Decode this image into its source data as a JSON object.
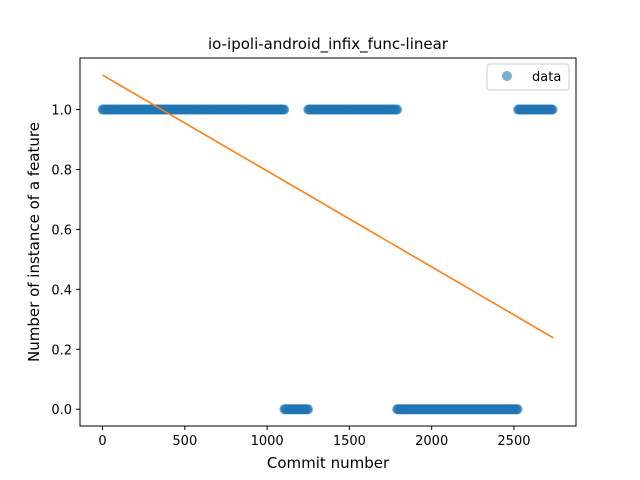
{
  "chart_data": {
    "type": "scatter",
    "title": "io-ipoli-android_infix_func-linear",
    "xlabel": "Commit number",
    "ylabel": "Number of instance of a feature",
    "xlim": [
      -137,
      2877
    ],
    "ylim": [
      -0.056,
      1.172
    ],
    "xticks": [
      0,
      500,
      1000,
      1500,
      2000,
      2500
    ],
    "xtick_labels": [
      "0",
      "500",
      "1000",
      "1500",
      "2000",
      "2500"
    ],
    "yticks": [
      0.0,
      0.2,
      0.4,
      0.6,
      0.8,
      1.0
    ],
    "ytick_labels": [
      "0.0",
      "0.2",
      "0.4",
      "0.6",
      "0.8",
      "1.0"
    ],
    "grid": false,
    "legend": {
      "placement": "top-right",
      "entries": [
        {
          "label": "data",
          "color": "#1f77b4",
          "marker": "circle"
        }
      ]
    },
    "series": [
      {
        "name": "data",
        "kind": "scatter",
        "color": "#1f77b4",
        "segments": [
          {
            "x_start": 0,
            "x_end": 1105,
            "y": 1
          },
          {
            "x_start": 1105,
            "x_end": 1250,
            "y": 0
          },
          {
            "x_start": 1250,
            "x_end": 1790,
            "y": 1
          },
          {
            "x_start": 1790,
            "x_end": 2525,
            "y": 0
          },
          {
            "x_start": 2525,
            "x_end": 2740,
            "y": 1
          }
        ]
      },
      {
        "kind": "line",
        "color": "#ff7f0e",
        "x": [
          0,
          2740
        ],
        "y": [
          1.115,
          0.238
        ]
      }
    ]
  }
}
